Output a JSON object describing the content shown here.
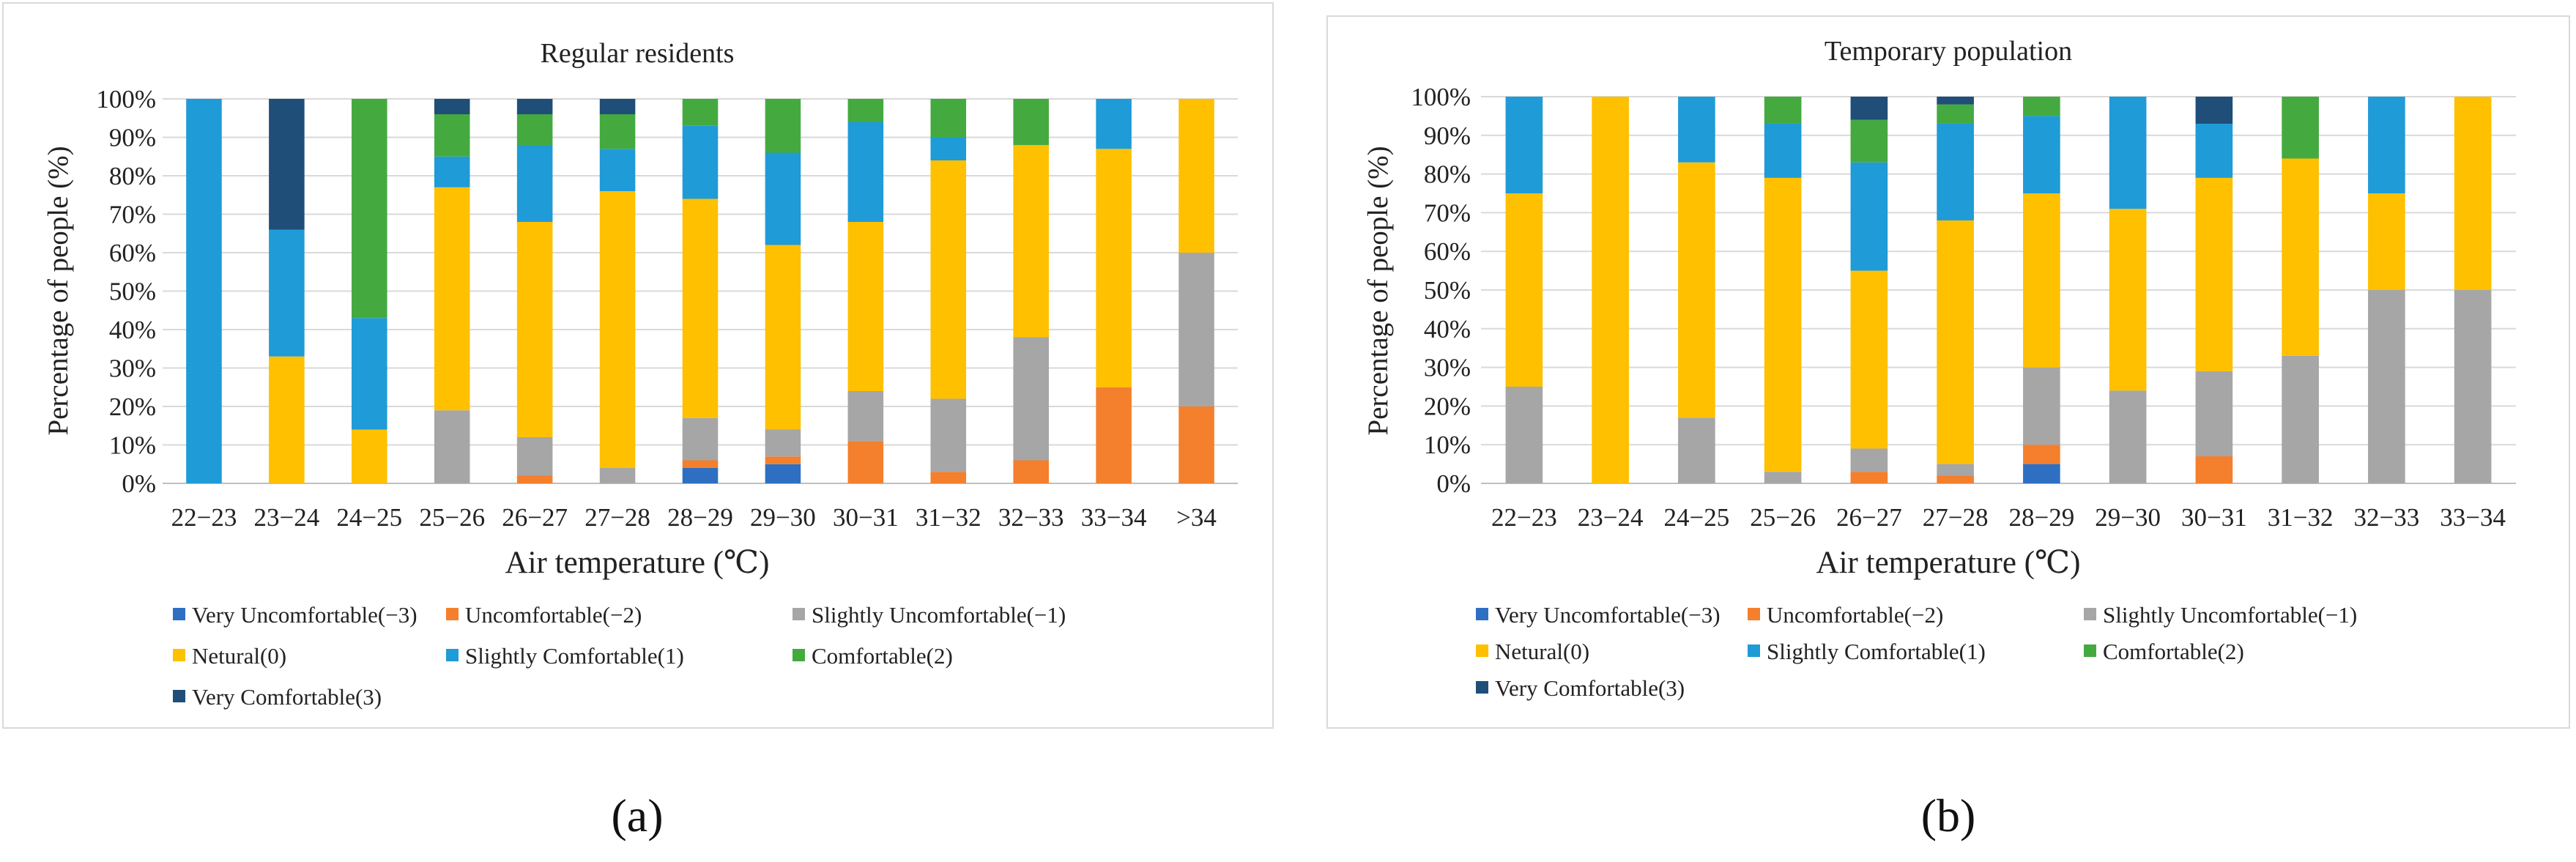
{
  "colors": {
    "very_uncomfortable": "#2E6FC2",
    "uncomfortable": "#F47F2C",
    "slightly_uncomfortable": "#A6A6A6",
    "neutral": "#FFC000",
    "slightly_comfortable": "#1F9BD7",
    "comfortable": "#44AA40",
    "very_comfortable": "#1F4E79",
    "panel_border": "#D9D9D9",
    "gridline": "#D9D9D9",
    "axis": "#BFBFBF",
    "text": "#222222"
  },
  "legend_labels": [
    "Very  Uncomfortable(−3)",
    "Uncomfortable(−2)",
    "Slightly Uncomfortable(−1)",
    "Netural(0)",
    "Slightly Comfortable(1)",
    "Comfortable(2)",
    "Very Comfortable(3)"
  ],
  "panel_labels": [
    "(a)",
    "(b)"
  ],
  "chart_data": [
    {
      "type": "bar",
      "stacked": true,
      "title": "Regular residents",
      "xlabel": "Air temperature (℃)",
      "ylabel": "Percentage of people (%)",
      "ylim": [
        0,
        100
      ],
      "yticks": [
        "0%",
        "10%",
        "20%",
        "30%",
        "40%",
        "50%",
        "60%",
        "70%",
        "80%",
        "90%",
        "100%"
      ],
      "grid": true,
      "legend": "bottom",
      "categories": [
        "22−23",
        "23−24",
        "24−25",
        "25−26",
        "26−27",
        "27−28",
        "28−29",
        "29−30",
        "30−31",
        "31−32",
        "32−33",
        "33−34",
        ">34"
      ],
      "series": [
        {
          "name": "Very  Uncomfortable(−3)",
          "values": [
            0,
            0,
            0,
            0,
            0,
            0,
            4,
            5,
            0,
            0,
            0,
            0,
            0
          ]
        },
        {
          "name": "Uncomfortable(−2)",
          "values": [
            0,
            0,
            0,
            0,
            2,
            0,
            2,
            2,
            11,
            3,
            6,
            25,
            20
          ]
        },
        {
          "name": "Slightly Uncomfortable(−1)",
          "values": [
            0,
            0,
            0,
            19,
            10,
            4,
            11,
            7,
            13,
            19,
            32,
            0,
            40
          ]
        },
        {
          "name": "Netural(0)",
          "values": [
            0,
            33,
            14,
            58,
            56,
            72,
            57,
            48,
            44,
            62,
            50,
            62,
            40
          ]
        },
        {
          "name": "Slightly Comfortable(1)",
          "values": [
            100,
            33,
            29,
            8,
            20,
            11,
            19,
            24,
            26,
            6,
            0,
            13,
            0
          ]
        },
        {
          "name": "Comfortable(2)",
          "values": [
            0,
            0,
            57,
            11,
            8,
            9,
            7,
            14,
            6,
            10,
            12,
            0,
            0
          ]
        },
        {
          "name": "Very Comfortable(3)",
          "values": [
            0,
            34,
            0,
            4,
            4,
            4,
            0,
            0,
            0,
            0,
            0,
            0,
            0
          ]
        }
      ]
    },
    {
      "type": "bar",
      "stacked": true,
      "title": "Temporary population",
      "xlabel": "Air temperature (℃)",
      "ylabel": "Percentage of people (%)",
      "ylim": [
        0,
        100
      ],
      "yticks": [
        "0%",
        "10%",
        "20%",
        "30%",
        "40%",
        "50%",
        "60%",
        "70%",
        "80%",
        "90%",
        "100%"
      ],
      "grid": true,
      "legend": "bottom",
      "categories": [
        "22−23",
        "23−24",
        "24−25",
        "25−26",
        "26−27",
        "27−28",
        "28−29",
        "29−30",
        "30−31",
        "31−32",
        "32−33",
        "33−34"
      ],
      "series": [
        {
          "name": "Very  Uncomfortable(−3)",
          "values": [
            0,
            0,
            0,
            0,
            0,
            0,
            5,
            0,
            0,
            0,
            0,
            0
          ]
        },
        {
          "name": "Uncomfortable(−2)",
          "values": [
            0,
            0,
            0,
            0,
            3,
            2,
            5,
            0,
            7,
            0,
            0,
            0
          ]
        },
        {
          "name": "Slightly Uncomfortable(−1)",
          "values": [
            25,
            0,
            17,
            3,
            6,
            3,
            20,
            24,
            22,
            33,
            50,
            50
          ]
        },
        {
          "name": "Netural(0)",
          "values": [
            50,
            100,
            66,
            76,
            46,
            63,
            45,
            47,
            50,
            51,
            25,
            50
          ]
        },
        {
          "name": "Slightly Comfortable(1)",
          "values": [
            25,
            0,
            17,
            14,
            28,
            25,
            20,
            29,
            14,
            0,
            25,
            0
          ]
        },
        {
          "name": "Comfortable(2)",
          "values": [
            0,
            0,
            0,
            7,
            11,
            5,
            5,
            0,
            0,
            16,
            0,
            0
          ]
        },
        {
          "name": "Very Comfortable(3)",
          "values": [
            0,
            0,
            0,
            0,
            6,
            2,
            0,
            0,
            7,
            0,
            0,
            0
          ]
        }
      ]
    }
  ]
}
